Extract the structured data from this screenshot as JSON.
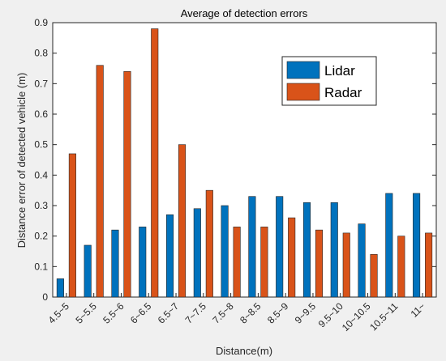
{
  "chart_data": {
    "type": "bar",
    "title": "Average of detection errors",
    "xlabel": "Distance(m)",
    "ylabel": "Distance error of detected vehicle (m)",
    "categories": [
      "4.5~5",
      "5~5.5",
      "5.5~6",
      "6~6.5",
      "6.5~7",
      "7~7.5",
      "7.5~8",
      "8~8.5",
      "8.5~9",
      "9~9.5",
      "9.5~10",
      "10~10.5",
      "10.5~11",
      "11~"
    ],
    "series": [
      {
        "name": "Lidar",
        "color": "#0072bd",
        "values": [
          0.06,
          0.17,
          0.22,
          0.23,
          0.27,
          0.29,
          0.3,
          0.33,
          0.33,
          0.31,
          0.31,
          0.24,
          0.34,
          0.34
        ]
      },
      {
        "name": "Radar",
        "color": "#d95319",
        "values": [
          0.47,
          0.76,
          0.74,
          0.88,
          0.5,
          0.35,
          0.23,
          0.23,
          0.26,
          0.22,
          0.21,
          0.14,
          0.2,
          0.21
        ]
      }
    ],
    "ylim": [
      0,
      0.9
    ],
    "yticks": [
      "0",
      "0.1",
      "0.2",
      "0.3",
      "0.4",
      "0.5",
      "0.6",
      "0.7",
      "0.8",
      "0.9"
    ],
    "grid": false,
    "legend_position": "top-right"
  }
}
